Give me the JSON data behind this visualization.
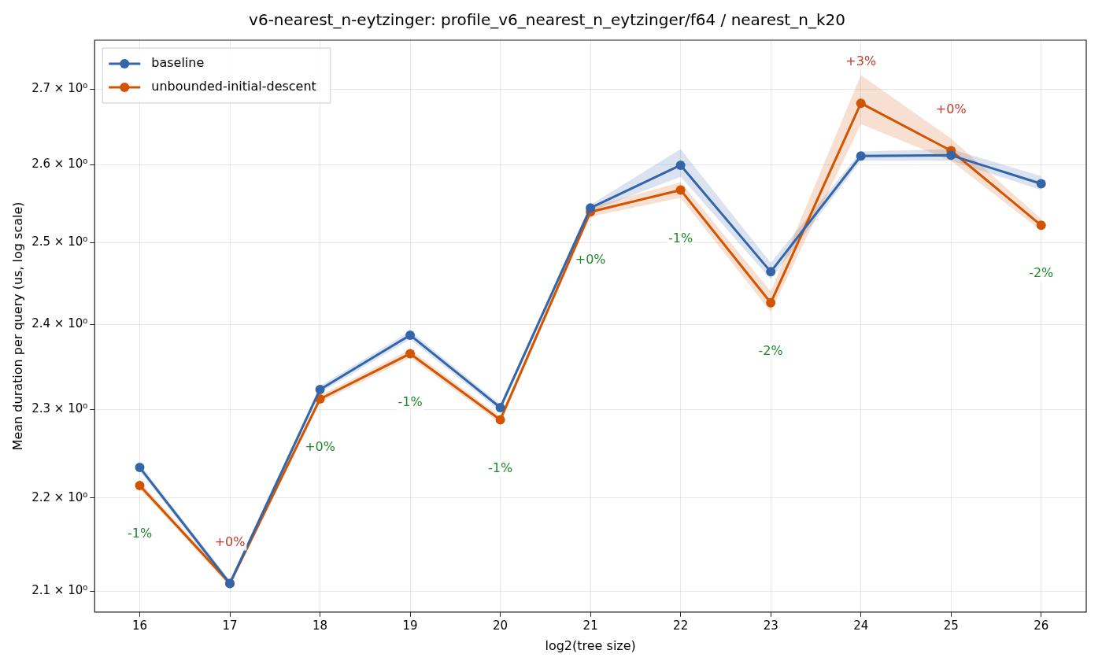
{
  "chart_data": {
    "type": "line",
    "title": "v6-nearest_n-eytzinger: profile_v6_nearest_n_eytzinger/f64 / nearest_n_k20",
    "xlabel": "log2(tree size)",
    "ylabel": "Mean duration per query (us, log scale)",
    "categories": [
      "16",
      "17",
      "18",
      "19",
      "20",
      "21",
      "22",
      "23",
      "24",
      "25",
      "26"
    ],
    "series": [
      {
        "name": "baseline",
        "color": "#3465a8",
        "values": [
          2.234,
          2.108,
          2.323,
          2.387,
          2.302,
          2.544,
          2.599,
          2.464,
          2.611,
          2.612,
          2.575
        ],
        "lower": [
          2.23,
          2.105,
          2.319,
          2.382,
          2.298,
          2.54,
          2.584,
          2.455,
          2.605,
          2.605,
          2.567
        ],
        "upper": [
          2.238,
          2.111,
          2.327,
          2.392,
          2.306,
          2.548,
          2.62,
          2.475,
          2.617,
          2.62,
          2.585
        ]
      },
      {
        "name": "unbounded-initial-descent",
        "color": "#d35400",
        "values": [
          2.214,
          2.108,
          2.312,
          2.365,
          2.288,
          2.539,
          2.567,
          2.426,
          2.681,
          2.618,
          2.522
        ],
        "lower": [
          2.21,
          2.105,
          2.308,
          2.36,
          2.284,
          2.533,
          2.557,
          2.415,
          2.653,
          2.605,
          2.515
        ],
        "upper": [
          2.218,
          2.111,
          2.316,
          2.37,
          2.292,
          2.545,
          2.577,
          2.44,
          2.719,
          2.634,
          2.53
        ]
      }
    ],
    "ylim": [
      2.078,
      2.767
    ],
    "log": "y",
    "yticks": [
      {
        "value": 2.1,
        "label": "2.1 × 10⁰"
      },
      {
        "value": 2.2,
        "label": "2.2 × 10⁰"
      },
      {
        "value": 2.3,
        "label": "2.3 × 10⁰"
      },
      {
        "value": 2.4,
        "label": "2.4 × 10⁰"
      },
      {
        "value": 2.5,
        "label": "2.5 × 10⁰"
      },
      {
        "value": 2.6,
        "label": "2.6 × 10⁰"
      },
      {
        "value": 2.7,
        "label": "2.7 × 10⁰"
      }
    ],
    "grid": true,
    "legend": "top left",
    "marker": "circle",
    "line_style": "solid",
    "annotations": [
      "-1%",
      "+0%",
      "+0%",
      "-1%",
      "-1%",
      "+0%",
      "-1%",
      "-2%",
      "+3%",
      "+0%",
      "-2%"
    ]
  }
}
